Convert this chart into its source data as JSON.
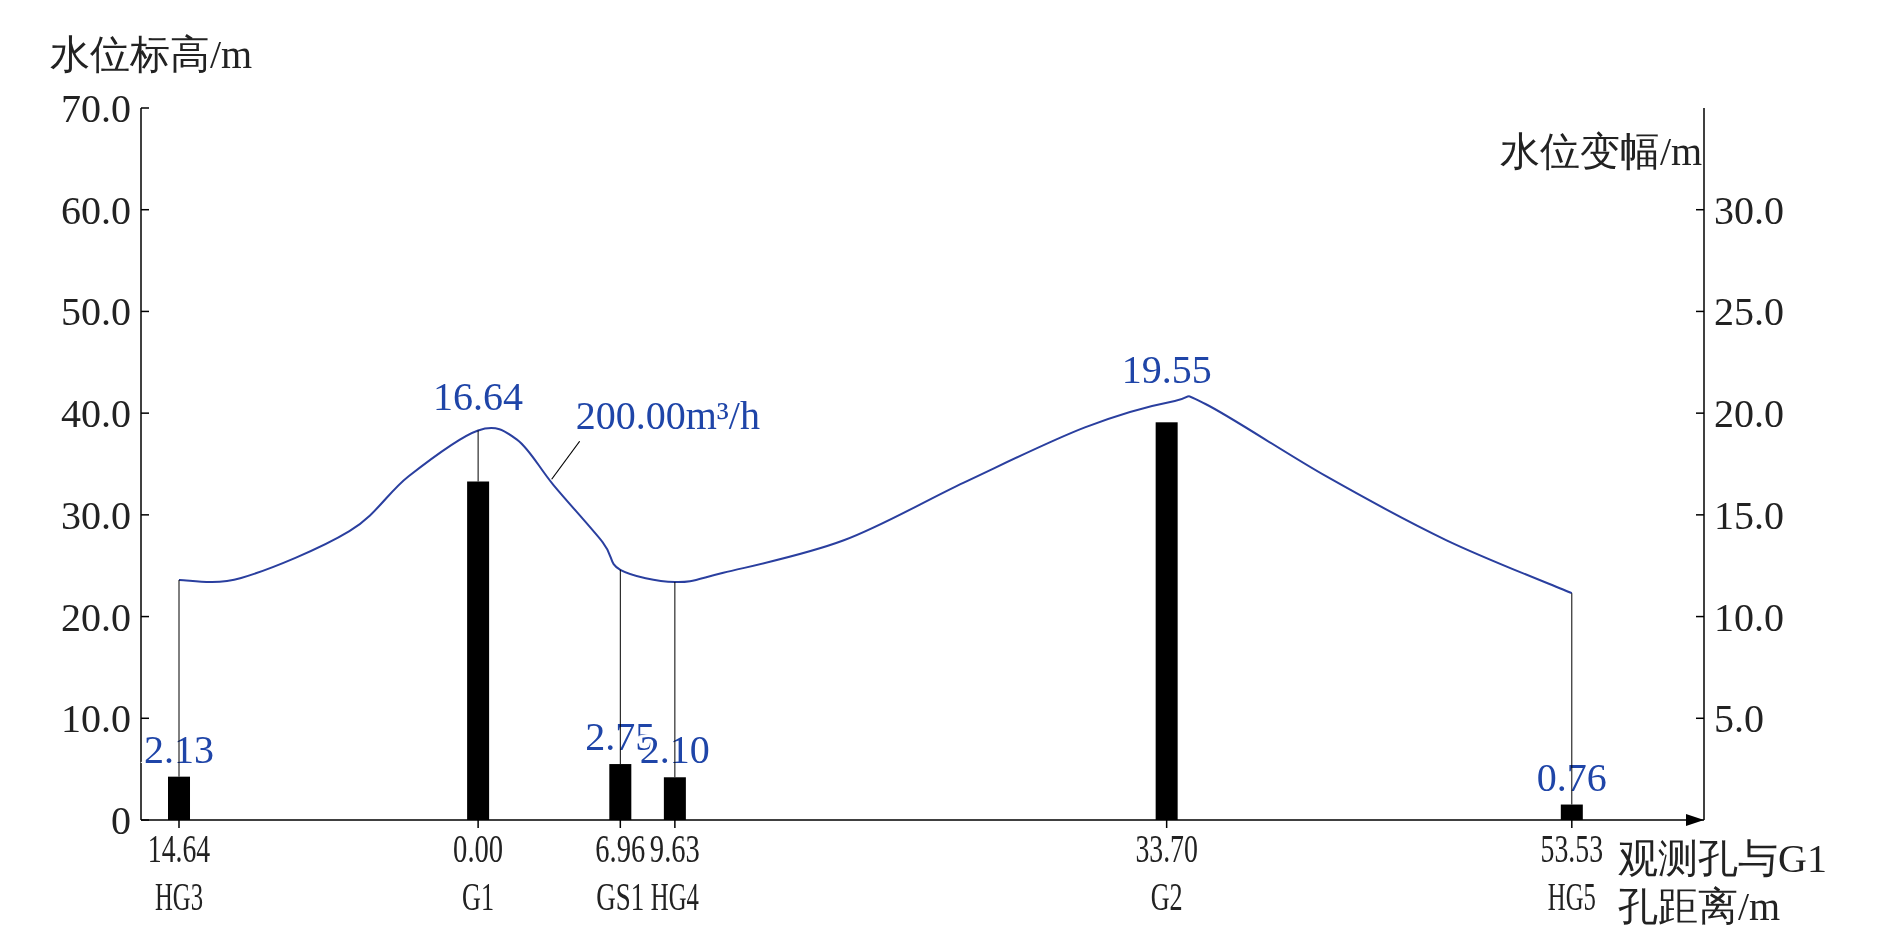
{
  "chart_data": {
    "type": "bar",
    "xlabel": "观测孔与G1\n孔距离/m",
    "ylabel": "水位标高/m",
    "y2label": "水位变幅/m",
    "x": [
      -14.64,
      0,
      6.96,
      9.63,
      33.7,
      53.53
    ],
    "xlim": [
      -16.5,
      60
    ],
    "xticks": [
      {
        "value": -14.64,
        "label": "14.64"
      },
      {
        "value": 0,
        "label": "0.00"
      },
      {
        "value": 6.96,
        "label": "6.96"
      },
      {
        "value": 9.63,
        "label": "9.63"
      },
      {
        "value": 33.7,
        "label": "33.70"
      },
      {
        "value": 53.53,
        "label": "53.53"
      }
    ],
    "ylim": [
      0,
      70
    ],
    "yticks": [
      {
        "value": 0,
        "label": "0"
      },
      {
        "value": 10,
        "label": "10.0"
      },
      {
        "value": 20,
        "label": "20.0"
      },
      {
        "value": 30,
        "label": "30.0"
      },
      {
        "value": 40,
        "label": "40.0"
      },
      {
        "value": 50,
        "label": "50.0"
      },
      {
        "value": 60,
        "label": "60.0"
      },
      {
        "value": 70,
        "label": "70.0"
      }
    ],
    "y2lim": [
      0,
      35
    ],
    "y2ticks": [
      {
        "value": 5,
        "label": "5.0"
      },
      {
        "value": 10,
        "label": "10.0"
      },
      {
        "value": 15,
        "label": "15.0"
      },
      {
        "value": 20,
        "label": "20.0"
      },
      {
        "value": 25,
        "label": "25.0"
      },
      {
        "value": 30,
        "label": "30.0"
      }
    ],
    "series": [
      {
        "axis": "y2",
        "color": "#000000",
        "values": [
          2.13,
          16.64,
          2.75,
          2.1,
          19.55,
          0.76
        ],
        "value_labels": [
          "2.13",
          "16.64",
          "2.75",
          "2.10",
          "19.55",
          "0.76"
        ]
      },
      {
        "type": "line",
        "axis": "y",
        "color": "#2a3f9f",
        "x": [
          -14.64,
          -11.6,
          -6.3,
          -3.4,
          0,
          1.9,
          3.7,
          6.1,
          6.96,
          9.63,
          12.0,
          17.9,
          23.8,
          29.7,
          34.1,
          35.6,
          41.5,
          47.4,
          53.53
        ],
        "values": [
          23.6,
          23.8,
          28.4,
          33.8,
          38.3,
          37.4,
          32.9,
          27.3,
          24.6,
          23.4,
          24.3,
          27.5,
          33.2,
          38.6,
          41.2,
          40.9,
          33.8,
          27.5,
          22.3
        ]
      }
    ],
    "annotations": [
      {
        "text": "200.00m³/h",
        "x": 3.6,
        "y": 33.5
      },
      {
        "text": "HG3",
        "x": -14.64,
        "y": 0
      },
      {
        "text": "G1",
        "x": 0,
        "y": 0
      },
      {
        "text": "GS1",
        "x": 6.96,
        "y": 0
      },
      {
        "text": "HG4",
        "x": 9.63,
        "y": 0
      },
      {
        "text": "G2",
        "x": 33.7,
        "y": 0
      },
      {
        "text": "HG5",
        "x": 53.53,
        "y": 0
      }
    ],
    "grid": false
  }
}
